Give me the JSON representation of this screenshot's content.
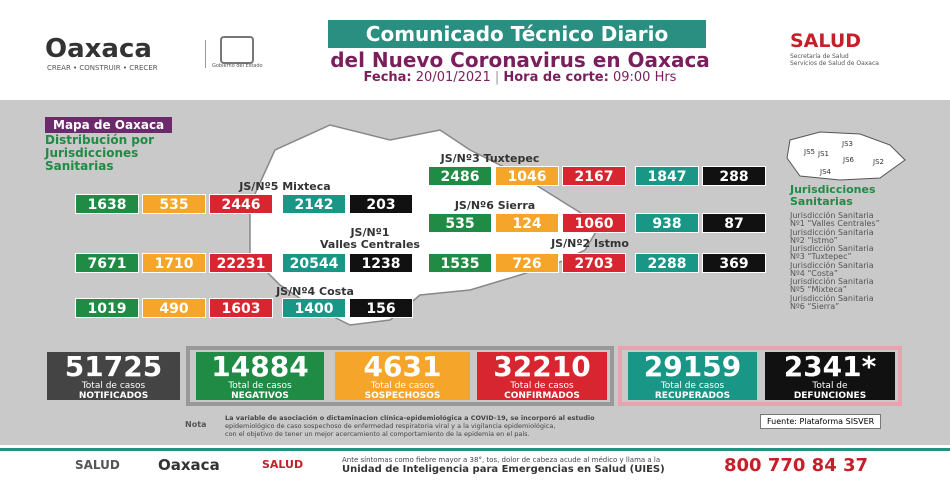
{
  "header": {
    "logo": "Oaxaca",
    "logo_sub": "CREAR • CONSTRUIR • CRECER",
    "gov": "Gobierno del Estado",
    "title1": "Comunicado Técnico Diario",
    "title2": "del Nuevo Coronavirus en Oaxaca",
    "fecha_label": "Fecha:",
    "fecha": "20/01/2021",
    "hora_label": "Hora de corte:",
    "hora": "09:00 Hrs",
    "salud": "SALUD",
    "salud_sub1": "Secretaría de Salud",
    "salud_sub2": "Servicios de Salud de Oaxaca"
  },
  "map": {
    "title": "Mapa de Oaxaca",
    "subtitle": "Distribución por Jurisdicciones Sanitarias",
    "regions": [
      {
        "title": "JS/Nº5 Mixteca",
        "values": [
          1638,
          535,
          2446,
          2142,
          203
        ]
      },
      {
        "title": "JS/Nº3 Tuxtepec",
        "values": [
          2486,
          1046,
          2167,
          1847,
          288
        ]
      },
      {
        "title": "JS/Nº6 Sierra",
        "values": [
          535,
          124,
          1060,
          938,
          87
        ]
      },
      {
        "title": "JS/Nº1",
        "subtitle": "Valles Centrales",
        "values": [
          7671,
          1710,
          22231,
          20544,
          1238
        ]
      },
      {
        "title": "JS/Nº2 Istmo",
        "values": [
          1535,
          726,
          2703,
          2288,
          369
        ]
      },
      {
        "title": "JS/Nº4 Costa",
        "values": [
          1019,
          490,
          1603,
          1400,
          156
        ]
      }
    ]
  },
  "minimap": {
    "labels": [
      "JS1",
      "JS2",
      "JS3",
      "JS4",
      "JS5",
      "JS6"
    ]
  },
  "legend": {
    "title": "Jurisdicciones Sanitarias",
    "items": [
      [
        "Jurisdicción Sanitaria",
        "Nº1 “Valles Centrales”"
      ],
      [
        "Jurisdicción Sanitaria",
        "Nº2 “Istmo”"
      ],
      [
        "Jurisdicción Sanitaria",
        "Nº3 “Tuxtepec”"
      ],
      [
        "Jurisdicción Sanitaria",
        "Nº4 “Costa”"
      ],
      [
        "Jurisdicción Sanitaria",
        "Nº5 “Mixteca”"
      ],
      [
        "Jurisdicción Sanitaria",
        "Nº6 “Sierra”"
      ]
    ]
  },
  "totals": [
    {
      "value": "51725",
      "line1": "Total de casos",
      "line2": "NOTIFICADOS"
    },
    {
      "value": "14884",
      "line1": "Total de casos",
      "line2": "NEGATIVOS"
    },
    {
      "value": "4631",
      "line1": "Total de casos",
      "line2": "SOSPECHOSOS"
    },
    {
      "value": "32210",
      "line1": "Total de casos",
      "line2": "CONFIRMADOS"
    },
    {
      "value": "29159",
      "line1": "Total de casos",
      "line2": "RECUPERADOS"
    },
    {
      "value": "2341*",
      "line1": "Total de",
      "line2": "DEFUNCIONES"
    }
  ],
  "note": {
    "label": "Nota",
    "lines": [
      "La variable de asociación o dictaminacion clínica-epidemiológica a COVID-19, se incorporó al estudio",
      "epidemiológico de caso sospechoso de enfermedad respiratoria viral y a la vigilancia epidemiológica,",
      "con el objetivo de tener un mejor acercamiento al comportamiento de la epidemia en el país."
    ],
    "source": "Fuente: Plataforma SISVER"
  },
  "footer": {
    "salud": "SALUD",
    "oaxaca": "Oaxaca",
    "salud2": "SALUD",
    "line1": "Ante síntomas como fiebre mayor a 38°, tos, dolor de cabeza acude al médico y llama a la",
    "line2": "Unidad de Inteligencia para Emergencias en Salud (UIES)",
    "phone": "800 770 84 37"
  }
}
